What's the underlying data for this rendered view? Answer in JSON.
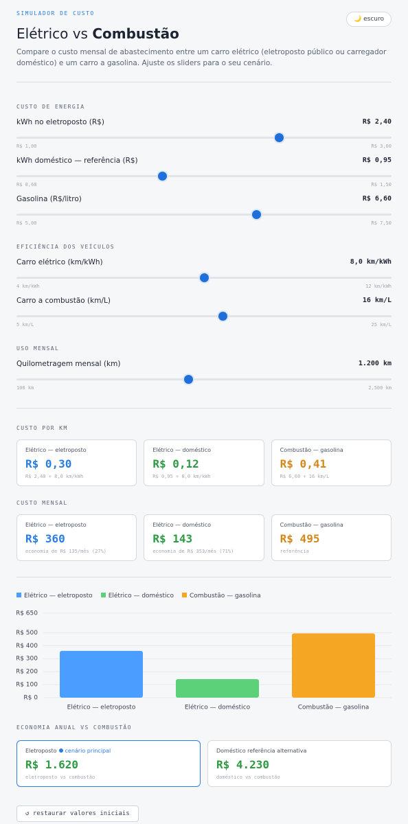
{
  "header": {
    "eyebrow": "SIMULADOR DE CUSTO",
    "title": "Elétrico vs",
    "title_emphasis": "Combustão",
    "description": "Compare o custo mensal de abastecimento entre um carro elétrico (eletroposto público ou carregador doméstico) e um carro a gasolina. Ajuste os sliders para o seu cenário.",
    "theme_icon": "🌙",
    "theme_toggle": "escuro"
  },
  "sections": [
    {
      "title": "CUSTO DE ENERGIA",
      "sliders": [
        {
          "label": "kWh no eletroposto (R$)",
          "value": {
            "value": 2.4,
            "label": "R$ 2,40"
          },
          "min": {
            "value": 1,
            "label": "R$ 1,00"
          },
          "max": {
            "value": 3,
            "label": "R$ 3,00"
          }
        },
        {
          "label": "kWh doméstico — referência (R$)",
          "value": {
            "value": 0.95,
            "label": "R$ 0,95"
          },
          "min": {
            "value": 0.6,
            "label": "R$ 0,60"
          },
          "max": {
            "value": 1.5,
            "label": "R$ 1,50"
          }
        },
        {
          "label": "Gasolina (R$/litro)",
          "value": {
            "value": 6.6,
            "label": "R$ 6,60"
          },
          "min": {
            "value": 5,
            "label": "R$ 5,00"
          },
          "max": {
            "value": 7.5,
            "label": "R$ 7,50"
          }
        }
      ]
    },
    {
      "title": "EFICIÊNCIA DOS VEÍCULOS",
      "sliders": [
        {
          "label": "Carro elétrico (km/kWh)",
          "value": {
            "value": 8,
            "label": "8,0 km/kWh"
          },
          "min": {
            "value": 4,
            "label": "4 km/kWh"
          },
          "max": {
            "value": 12,
            "label": "12 km/kWh"
          }
        },
        {
          "label": "Carro a combustão (km/L)",
          "value": {
            "value": 16,
            "label": "16 km/L"
          },
          "min": {
            "value": 5,
            "label": "5 km/L"
          },
          "max": {
            "value": 25,
            "label": "25 km/L"
          }
        }
      ]
    },
    {
      "title": "USO MENSAL",
      "sliders": [
        {
          "label": "Quilometragem mensal (km)",
          "value": {
            "value": 1200,
            "label": "1.200 km"
          },
          "min": {
            "value": 100,
            "label": "100 km"
          },
          "max": {
            "value": 2500,
            "label": "2.500 km"
          }
        }
      ]
    }
  ],
  "cost_per_km": {
    "title": "CUSTO POR KM",
    "cards": [
      {
        "label": "Elétrico — eletroposto",
        "value": "R$ 0,30",
        "note": "R$ 2,40 ÷ 8,0 km/kWh",
        "color": "#2a7de1"
      },
      {
        "label": "Elétrico — doméstico",
        "value": "R$ 0,12",
        "note": "R$ 0,95 ÷ 8,0 km/kWh",
        "color": "#2f9a44"
      },
      {
        "label": "Combustão — gasolina",
        "value": "R$ 0,41",
        "note": "R$ 6,60 ÷ 16 km/L",
        "color": "#d4881c"
      }
    ]
  },
  "monthly_cost": {
    "title": "CUSTO MENSAL",
    "cards": [
      {
        "label": "Elétrico — eletroposto",
        "value": "R$ 360",
        "note": "economia de R$ 135/mês (27%)",
        "color": "#2a7de1"
      },
      {
        "label": "Elétrico — doméstico",
        "value": "R$ 143",
        "note": "economia de R$ 353/mês (71%)",
        "color": "#2f9a44"
      },
      {
        "label": "Combustão — gasolina",
        "value": "R$ 495",
        "note": "referência",
        "color": "#d4881c"
      }
    ]
  },
  "chart": {
    "type": "bar",
    "categories": [
      "Elétrico — eletroposto",
      "Elétrico — doméstico",
      "Combustão — gasolina"
    ],
    "values": [
      360,
      143,
      495
    ],
    "colors": [
      "#4a9eff",
      "#5dd07a",
      "#f5a623"
    ],
    "ylim": [
      0,
      650
    ],
    "yticks": [
      {
        "value": 0,
        "label": "R$ 0"
      },
      {
        "value": 100,
        "label": "R$ 100"
      },
      {
        "value": 200,
        "label": "R$ 200"
      },
      {
        "value": 300,
        "label": "R$ 300"
      },
      {
        "value": 400,
        "label": "R$ 400"
      },
      {
        "value": 500,
        "label": "R$ 500"
      },
      {
        "value": 650,
        "label": "R$ 650"
      }
    ],
    "grid": true
  },
  "annual_savings": {
    "title": "ECONOMIA ANUAL VS COMBUSTÃO",
    "cards": [
      {
        "label": "Eletroposto",
        "badge": "cenário principal",
        "value": "R$ 1.620",
        "note": "eletroposto vs combustão",
        "color": "#2f9a44"
      },
      {
        "label": "Doméstico referência alternativa",
        "value": "R$ 4.230",
        "note": "doméstico vs combustão",
        "color": "#2f9a44"
      }
    ]
  },
  "reset_button": "↺ restaurar valores iniciais"
}
